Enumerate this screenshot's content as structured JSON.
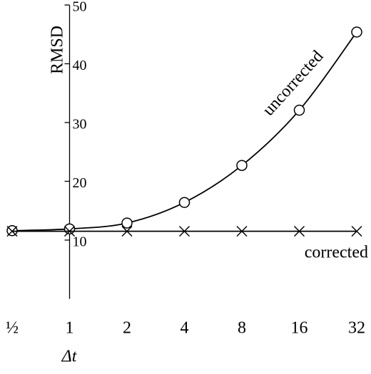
{
  "chart_data": {
    "type": "line",
    "x_label": "Δt",
    "y_label": "RMSD",
    "categories": [
      "½",
      "1",
      "2",
      "4",
      "8",
      "16",
      "32"
    ],
    "series": [
      {
        "name": "uncorrected",
        "color": "#000000",
        "marker": "o",
        "values": [
          11.6,
          11.9,
          12.9,
          16.4,
          22.7,
          32.1,
          45.4
        ]
      },
      {
        "name": "corrected",
        "color": "#000000",
        "marker": "x",
        "values": [
          11.5,
          11.5,
          11.5,
          11.5,
          11.5,
          11.5,
          11.5
        ]
      }
    ],
    "ylim": [
      0,
      50
    ],
    "yticks": [
      10,
      20,
      30,
      40,
      50
    ],
    "grid": false
  }
}
